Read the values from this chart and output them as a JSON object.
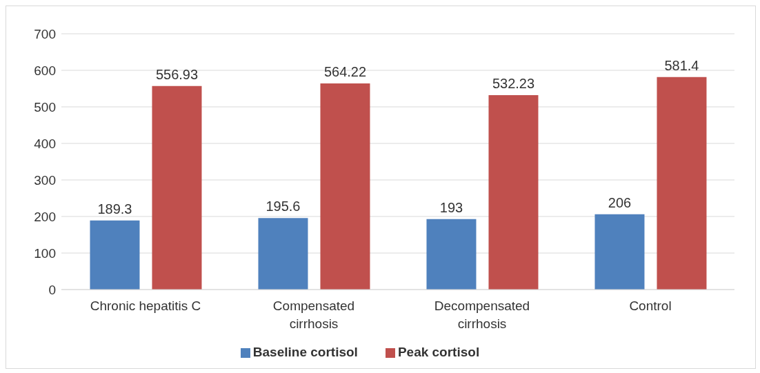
{
  "chart_data": {
    "type": "bar",
    "categories": [
      "Chronic hepatitis C",
      "Compensated cirrhosis",
      "Decompensated cirrhosis",
      "Control"
    ],
    "series": [
      {
        "name": "Baseline cortisol",
        "color": "#4f81bd",
        "values": [
          189.3,
          195.6,
          193,
          206
        ]
      },
      {
        "name": "Peak cortisol",
        "color": "#c0504d",
        "values": [
          556.93,
          564.22,
          532.23,
          581.4
        ]
      }
    ],
    "ylim": [
      0,
      700
    ],
    "yticks": [
      0,
      100,
      200,
      300,
      400,
      500,
      600,
      700
    ],
    "grid": "y",
    "legend": "bottom",
    "data_labels": true
  }
}
